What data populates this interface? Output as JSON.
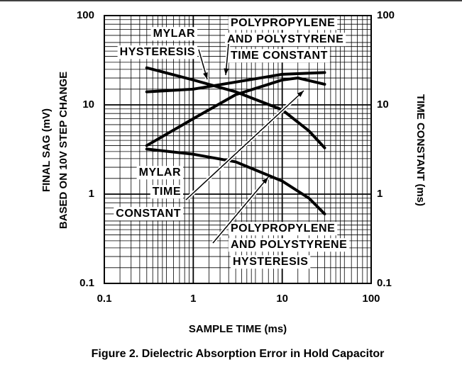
{
  "chart_data": {
    "type": "line",
    "title": "Figure 2. Dielectric Absorption Error in Hold Capacitor",
    "xlabel": "SAMPLE TIME (ms)",
    "ylabel": [
      "FINAL SAG (mV)",
      "BASED ON 10V STEP CHANGE"
    ],
    "y2label": "TIME CONSTANT (ms)",
    "xscale": "log",
    "yscale": "log",
    "grid": true,
    "xlim": [
      0.1,
      100
    ],
    "ylim": [
      0.1,
      100
    ],
    "y2lim": [
      0.1,
      100
    ],
    "xticks": [
      0.1,
      1,
      10,
      100
    ],
    "yticks": [
      0.1,
      1,
      10,
      100
    ],
    "y2ticks": [
      0.1,
      1,
      10,
      100
    ],
    "series": [
      {
        "color": "#000000",
        "x": [
          0.3,
          1,
          3,
          10,
          20,
          30
        ],
        "values": [
          26,
          19,
          14,
          8.8,
          5.1,
          3.3
        ]
      },
      {
        "color": "#000000",
        "axis": "y2",
        "x": [
          0.3,
          1,
          3,
          10,
          30
        ],
        "values": [
          14,
          15,
          18,
          22,
          23
        ]
      },
      {
        "color": "#000000",
        "axis": "y2",
        "x": [
          0.3,
          1,
          3,
          10,
          15,
          30
        ],
        "values": [
          3.5,
          7,
          13,
          19,
          20,
          17
        ]
      },
      {
        "color": "#000000",
        "x": [
          0.3,
          1,
          3,
          10,
          20,
          30
        ],
        "values": [
          3.2,
          2.8,
          2.3,
          1.4,
          0.9,
          0.6
        ]
      }
    ],
    "annotations": [
      {
        "lines": [
          "MYLAR",
          "HYSTERESIS"
        ]
      },
      {
        "lines": [
          "POLYPROPYLENE",
          "AND POLYSTYRENE",
          "TIME CONSTANT"
        ]
      },
      {
        "lines": [
          "MYLAR",
          "TIME",
          "CONSTANT"
        ]
      },
      {
        "lines": [
          "POLYPROPYLENE",
          "AND POLYSTYRENE",
          "HYSTERESIS"
        ]
      }
    ]
  }
}
